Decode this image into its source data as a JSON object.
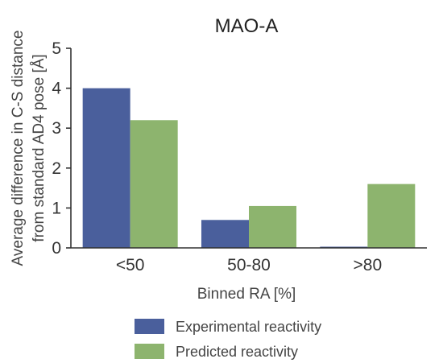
{
  "chart_data": {
    "type": "bar",
    "title": "MAO-A",
    "xlabel": "Binned RA [%]",
    "ylabel_lines": [
      "Average difference in C-S distance",
      "from standard AD4 pose [Å]"
    ],
    "categories": [
      "<50",
      "50-80",
      ">80"
    ],
    "ylim": [
      0,
      5
    ],
    "yticks": [
      0,
      1,
      2,
      3,
      4,
      5
    ],
    "grid": false,
    "legend_position": "bottom",
    "series": [
      {
        "name": "Experimental reactivity",
        "color": "#4a5f9c",
        "values": [
          4.0,
          0.7,
          0.03
        ]
      },
      {
        "name": "Predicted reactivity",
        "color": "#8db46e",
        "values": [
          3.2,
          1.05,
          1.6
        ]
      }
    ]
  }
}
